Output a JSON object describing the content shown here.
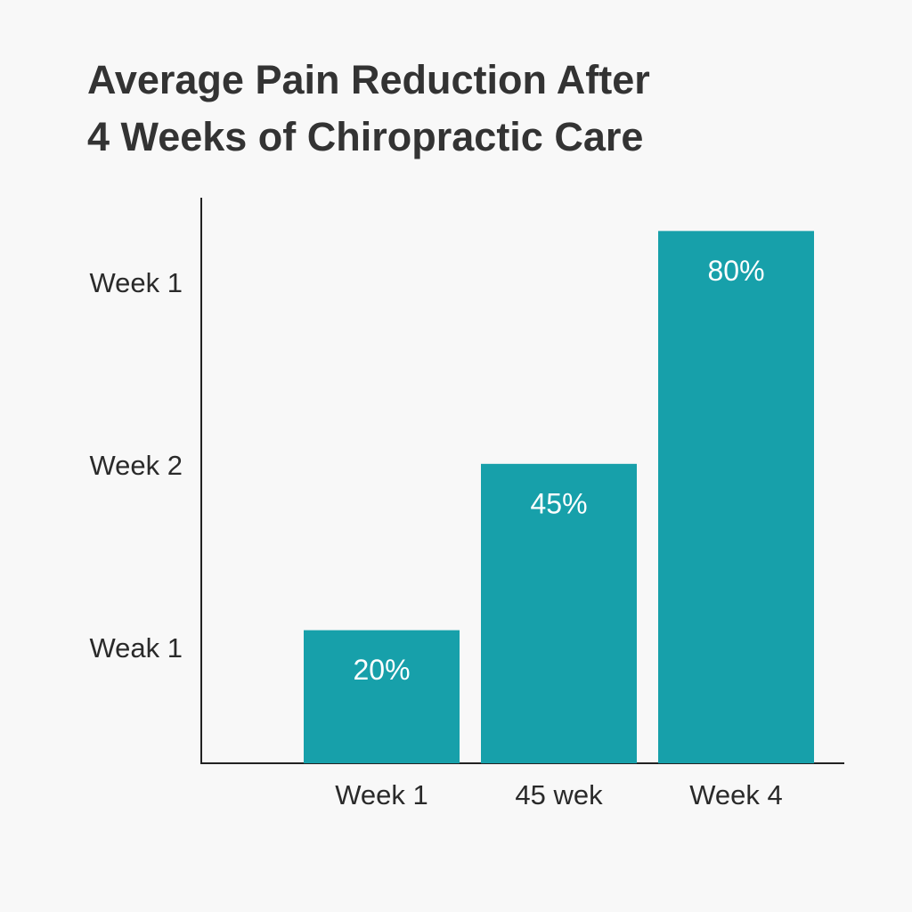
{
  "chart_data": {
    "type": "bar",
    "title": "Average Pain Reduction After\n4 Weeks of Chiropractic Care",
    "categories": [
      "Week 1",
      "45 wek",
      "Week 4"
    ],
    "values": [
      20,
      45,
      80
    ],
    "value_labels": [
      "20%",
      "45%",
      "80%"
    ],
    "color": "#17a0aa",
    "y_axis_labels": [
      "Week 1",
      "Week 2",
      "Weak 1"
    ],
    "ylim": [
      0,
      85
    ]
  }
}
